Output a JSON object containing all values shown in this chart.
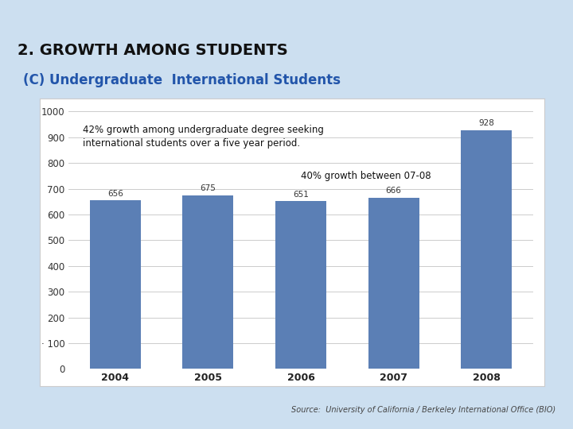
{
  "title": "2. GROWTH AMONG STUDENTS",
  "subtitle": "(C) Undergraduate  International Students",
  "years": [
    "2004",
    "2005",
    "2006",
    "2007",
    "2008"
  ],
  "values": [
    656,
    675,
    651,
    666,
    928
  ],
  "bar_color": "#5b7fb5",
  "ylim": [
    0,
    1000
  ],
  "yticks": [
    0,
    100,
    200,
    300,
    400,
    500,
    600,
    700,
    800,
    900,
    1000
  ],
  "annotation1": "42% growth among undergraduate degree seeking\ninternational students over a five year period.",
  "annotation2": "40% growth between 07-08",
  "source": "Source:  University of California / Berkeley International Office (BIO)",
  "bg_outer": "#ccdff0",
  "bg_chart": "#ffffff",
  "title_color": "#111111",
  "subtitle_color": "#2255aa",
  "bar_label_fontsize": 7.5,
  "annot1_fontsize": 8.5,
  "annot2_fontsize": 8.5,
  "title_fontsize": 14,
  "subtitle_fontsize": 12
}
